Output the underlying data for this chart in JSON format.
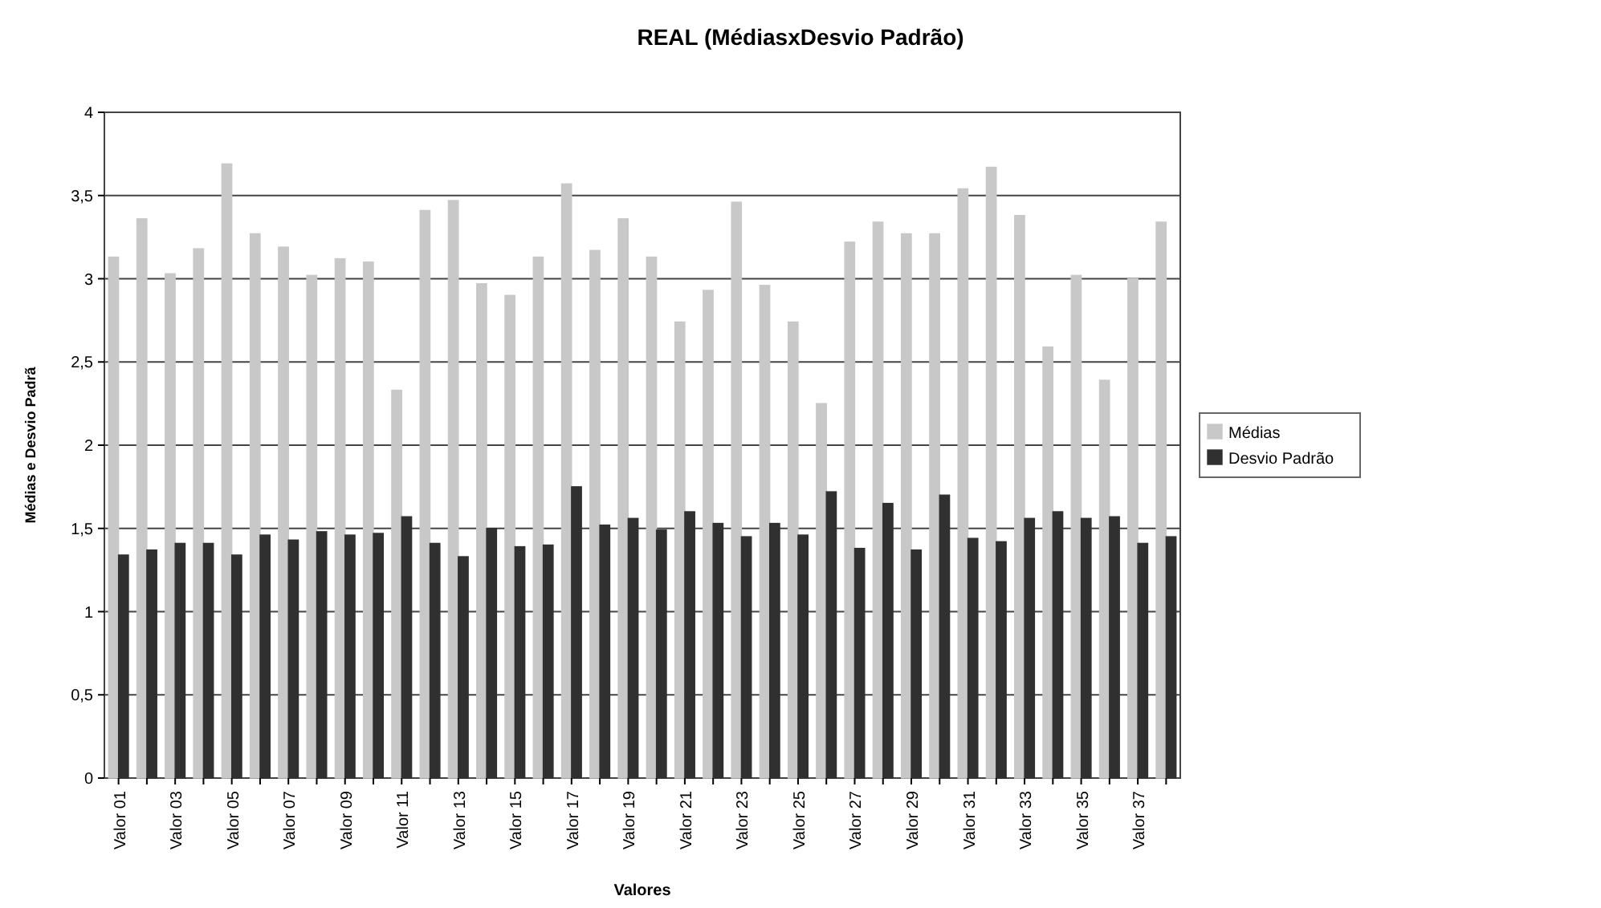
{
  "chart_data": {
    "type": "bar",
    "title": "REAL (MédiasxDesvio Padrão)",
    "xlabel": "Valores",
    "ylabel": "Médias e Desvio Padrã",
    "categories": [
      "Valor 01",
      null,
      "Valor 03",
      null,
      "Valor 05",
      null,
      "Valor 07",
      null,
      "Valor 09",
      null,
      "Valor 11",
      null,
      "Valor 13",
      null,
      "Valor 15",
      null,
      "Valor 17",
      null,
      "Valor 19",
      null,
      "Valor 21",
      null,
      "Valor 23",
      null,
      "Valor 25",
      null,
      "Valor 27",
      null,
      "Valor 29",
      null,
      "Valor 31",
      null,
      "Valor 33",
      null,
      "Valor 35",
      null,
      "Valor 37",
      null
    ],
    "series": [
      {
        "name": "Médias",
        "color": "#c8c8c8",
        "values": [
          3.13,
          3.36,
          3.03,
          3.18,
          3.69,
          3.27,
          3.19,
          3.02,
          3.12,
          3.1,
          2.33,
          3.41,
          3.47,
          2.97,
          2.9,
          3.13,
          3.57,
          3.17,
          3.36,
          3.13,
          2.74,
          2.93,
          3.46,
          2.96,
          2.74,
          2.25,
          3.22,
          3.34,
          3.27,
          3.27,
          3.54,
          3.67,
          3.38,
          2.59,
          3.02,
          2.39,
          3,
          3.34
        ]
      },
      {
        "name": "Desvio Padrão",
        "color": "#303030",
        "values": [
          1.34,
          1.37,
          1.41,
          1.41,
          1.34,
          1.46,
          1.43,
          1.48,
          1.46,
          1.47,
          1.57,
          1.41,
          1.33,
          1.5,
          1.39,
          1.4,
          1.75,
          1.52,
          1.56,
          1.49,
          1.6,
          1.53,
          1.45,
          1.53,
          1.46,
          1.72,
          1.38,
          1.65,
          1.37,
          1.7,
          1.44,
          1.42,
          1.56,
          1.6,
          1.56,
          1.57,
          1.41,
          1.45
        ]
      }
    ],
    "ylim": [
      0,
      4
    ],
    "yticks": [
      0,
      {
        "value": 0.5,
        "label": "0,5"
      },
      1,
      {
        "value": 1.5,
        "label": "1,5"
      },
      2,
      {
        "value": 2.5,
        "label": "2,5"
      },
      3,
      {
        "value": 3.5,
        "label": "3,5"
      },
      4
    ],
    "grid": "y",
    "legend": "right"
  }
}
